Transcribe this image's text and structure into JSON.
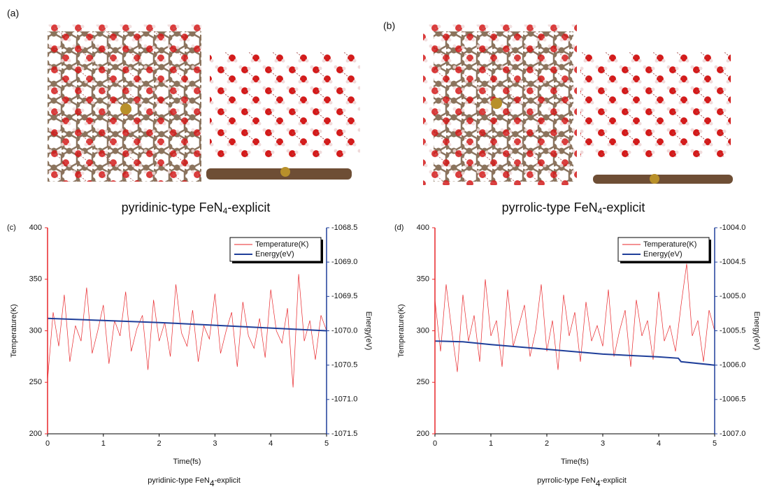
{
  "panels": {
    "a": "(a)",
    "b": "(b)"
  },
  "structures": [
    {
      "caption": [
        "pyridinic-type FeN",
        "4",
        "-explicit"
      ]
    },
    {
      "caption": [
        "pyrrolic-type FeN",
        "4",
        "-explicit"
      ]
    }
  ],
  "chart_data": [
    {
      "type": "line",
      "panel": "(c)",
      "caption": [
        "pyridinic-type FeN",
        "4",
        "-explicit"
      ],
      "xlabel": "Time(fs)",
      "ylabel": "Temperature(K)",
      "y2label": "Energy(eV)",
      "xlim": [
        0,
        5
      ],
      "xticks": [
        0,
        1,
        2,
        3,
        4,
        5
      ],
      "ylim": [
        200,
        400
      ],
      "yticks": [
        200,
        250,
        300,
        350,
        400
      ],
      "y2lim": [
        -1071.5,
        -1068.5
      ],
      "y2ticks": [
        {
          "value": -1071.5,
          "label": "-1071.5"
        },
        {
          "value": -1071,
          "label": "-1071.0"
        },
        {
          "value": -1070.5,
          "label": "-1070.5"
        },
        {
          "value": -1070,
          "label": "-1070.0"
        },
        {
          "value": -1069.5,
          "label": "-1069.5"
        },
        {
          "value": -1069,
          "label": "-1069.0"
        },
        {
          "value": -1068.5,
          "label": "-1068.5"
        }
      ],
      "legend": "upper right",
      "series": [
        {
          "name": "Temperature(K)",
          "color": "#e8262a",
          "x": [
            0,
            0.1,
            0.2,
            0.3,
            0.4,
            0.5,
            0.6,
            0.7,
            0.8,
            0.9,
            1,
            1.1,
            1.2,
            1.3,
            1.4,
            1.5,
            1.6,
            1.7,
            1.8,
            1.9,
            2,
            2.1,
            2.2,
            2.3,
            2.4,
            2.5,
            2.6,
            2.7,
            2.8,
            2.9,
            3,
            3.1,
            3.2,
            3.3,
            3.4,
            3.5,
            3.6,
            3.7,
            3.8,
            3.9,
            4,
            4.1,
            4.2,
            4.3,
            4.4,
            4.5,
            4.6,
            4.7,
            4.8,
            4.9,
            5
          ],
          "values": [
            252,
            318,
            285,
            335,
            270,
            305,
            290,
            342,
            278,
            300,
            325,
            268,
            310,
            295,
            338,
            280,
            302,
            315,
            262,
            330,
            290,
            308,
            275,
            345,
            298,
            285,
            320,
            270,
            305,
            292,
            336,
            278,
            300,
            318,
            265,
            328,
            295,
            283,
            312,
            274,
            340,
            300,
            288,
            322,
            245,
            355,
            290,
            310,
            272,
            315,
            300
          ]
        },
        {
          "name": "Energy(eV)",
          "color": "#1f3f9a",
          "axis": "y2",
          "x": [
            0,
            1,
            2,
            3,
            4,
            5
          ],
          "values": [
            -1069.82,
            -1069.85,
            -1069.88,
            -1069.92,
            -1069.96,
            -1070.0
          ]
        }
      ]
    },
    {
      "type": "line",
      "panel": "(d)",
      "caption": [
        "pyrrolic-type FeN",
        "4",
        "-explicit"
      ],
      "xlabel": "Time(fs)",
      "ylabel": "Temperature(K)",
      "y2label": "Energy(eV)",
      "xlim": [
        0,
        5
      ],
      "xticks": [
        0,
        1,
        2,
        3,
        4,
        5
      ],
      "ylim": [
        200,
        400
      ],
      "yticks": [
        200,
        250,
        300,
        350,
        400
      ],
      "y2lim": [
        -1007,
        -1004
      ],
      "y2ticks": [
        {
          "value": -1007,
          "label": "-1007.0"
        },
        {
          "value": -1006.5,
          "label": "-1006.5"
        },
        {
          "value": -1006,
          "label": "-1006.0"
        },
        {
          "value": -1005.5,
          "label": "-1005.5"
        },
        {
          "value": -1005,
          "label": "-1005.0"
        },
        {
          "value": -1004.5,
          "label": "-1004.5"
        },
        {
          "value": -1004,
          "label": "-1004.0"
        }
      ],
      "legend": "upper right",
      "series": [
        {
          "name": "Temperature(K)",
          "color": "#e8262a",
          "x": [
            0,
            0.1,
            0.2,
            0.3,
            0.4,
            0.5,
            0.6,
            0.7,
            0.8,
            0.9,
            1,
            1.1,
            1.2,
            1.3,
            1.4,
            1.5,
            1.6,
            1.7,
            1.8,
            1.9,
            2,
            2.1,
            2.2,
            2.3,
            2.4,
            2.5,
            2.6,
            2.7,
            2.8,
            2.9,
            3,
            3.1,
            3.2,
            3.3,
            3.4,
            3.5,
            3.6,
            3.7,
            3.8,
            3.9,
            4,
            4.1,
            4.2,
            4.3,
            4.4,
            4.5,
            4.6,
            4.7,
            4.8,
            4.9,
            5
          ],
          "values": [
            330,
            280,
            345,
            300,
            260,
            335,
            290,
            315,
            270,
            350,
            295,
            310,
            265,
            340,
            285,
            305,
            325,
            275,
            300,
            345,
            280,
            310,
            262,
            335,
            295,
            318,
            270,
            328,
            290,
            305,
            285,
            340,
            275,
            300,
            320,
            265,
            330,
            295,
            310,
            272,
            338,
            290,
            305,
            280,
            325,
            365,
            295,
            310,
            270,
            320,
            300
          ]
        },
        {
          "name": "Energy(eV)",
          "color": "#1f3f9a",
          "axis": "y2",
          "x": [
            0,
            0.5,
            1,
            2,
            3,
            4,
            4.35,
            4.4,
            5
          ],
          "values": [
            -1005.65,
            -1005.66,
            -1005.7,
            -1005.77,
            -1005.84,
            -1005.88,
            -1005.9,
            -1005.95,
            -1006.0
          ]
        }
      ]
    }
  ]
}
